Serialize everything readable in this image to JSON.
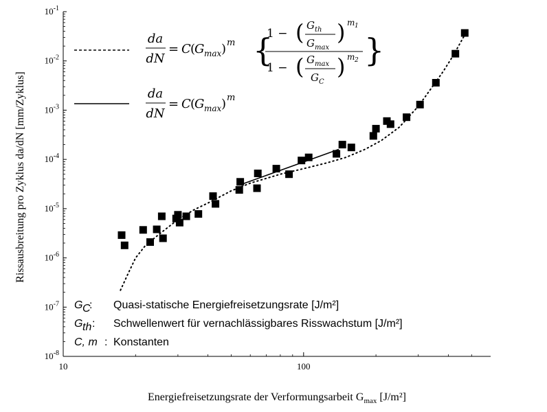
{
  "chart_data": {
    "type": "scatter",
    "title": "",
    "xlabel": "Energiefreisetzungsrate der Verformungsarbeit G",
    "xlabel_sub": "max",
    "xlabel_unit": " [J/m²]",
    "ylabel": "Rissausbreitung pro Zyklus da/dN [mm/Zyklus]",
    "x_scale": "log",
    "y_scale": "log",
    "xlim": [
      10,
      600
    ],
    "ylim": [
      1e-08,
      0.1
    ],
    "x_ticks": [
      {
        "value": 10,
        "label": "10"
      },
      {
        "value": 100,
        "label": "100"
      }
    ],
    "y_ticks": [
      {
        "value": 1e-08,
        "base": "10",
        "exp": "-8"
      },
      {
        "value": 1e-07,
        "base": "10",
        "exp": "-7"
      },
      {
        "value": 1e-06,
        "base": "10",
        "exp": "-6"
      },
      {
        "value": 1e-05,
        "base": "10",
        "exp": "-5"
      },
      {
        "value": 0.0001,
        "base": "10",
        "exp": "-4"
      },
      {
        "value": 0.001,
        "base": "10",
        "exp": "-3"
      },
      {
        "value": 0.01,
        "base": "10",
        "exp": "-2"
      },
      {
        "value": 0.1,
        "base": "10",
        "exp": "-1"
      }
    ],
    "grid": false,
    "legend_position": "top-left",
    "series": [
      {
        "kind": "markers",
        "color": "#000000",
        "points": [
          {
            "x": 17.5,
            "y": 2.9e-06
          },
          {
            "x": 18.0,
            "y": 1.8e-06
          },
          {
            "x": 21.5,
            "y": 3.7e-06
          },
          {
            "x": 23.0,
            "y": 2.1e-06
          },
          {
            "x": 24.5,
            "y": 3.8e-06
          },
          {
            "x": 25.7,
            "y": 7e-06
          },
          {
            "x": 26.0,
            "y": 2.5e-06
          },
          {
            "x": 29.5,
            "y": 6.3e-06
          },
          {
            "x": 30.0,
            "y": 7.5e-06
          },
          {
            "x": 30.5,
            "y": 5.2e-06
          },
          {
            "x": 32.5,
            "y": 7e-06
          },
          {
            "x": 36.5,
            "y": 7.8e-06
          },
          {
            "x": 42.0,
            "y": 1.8e-05
          },
          {
            "x": 43.0,
            "y": 1.25e-05
          },
          {
            "x": 54.0,
            "y": 2.4e-05
          },
          {
            "x": 54.5,
            "y": 3.5e-05
          },
          {
            "x": 64.0,
            "y": 2.6e-05
          },
          {
            "x": 64.5,
            "y": 5.2e-05
          },
          {
            "x": 77.0,
            "y": 6.5e-05
          },
          {
            "x": 87.0,
            "y": 5e-05
          },
          {
            "x": 98.0,
            "y": 9.5e-05
          },
          {
            "x": 105.0,
            "y": 0.00011
          },
          {
            "x": 137.0,
            "y": 0.00013
          },
          {
            "x": 145.0,
            "y": 0.0002
          },
          {
            "x": 158.0,
            "y": 0.000175
          },
          {
            "x": 195.0,
            "y": 0.0003
          },
          {
            "x": 200.0,
            "y": 0.00042
          },
          {
            "x": 222.0,
            "y": 0.0006
          },
          {
            "x": 230.0,
            "y": 0.00052
          },
          {
            "x": 268.0,
            "y": 0.00072
          },
          {
            "x": 305.0,
            "y": 0.0013
          },
          {
            "x": 355.0,
            "y": 0.0036
          },
          {
            "x": 428.0,
            "y": 0.014
          },
          {
            "x": 468.0,
            "y": 0.037
          }
        ]
      },
      {
        "kind": "dotted-line",
        "color": "#000000",
        "points": [
          {
            "x": 17.3,
            "y": 2.2e-07
          },
          {
            "x": 18.5,
            "y": 4.5e-07
          },
          {
            "x": 20.0,
            "y": 1e-06
          },
          {
            "x": 22.0,
            "y": 1.8e-06
          },
          {
            "x": 25.0,
            "y": 3e-06
          },
          {
            "x": 30.0,
            "y": 6e-06
          },
          {
            "x": 35.0,
            "y": 9.5e-06
          },
          {
            "x": 40.0,
            "y": 1.3e-05
          },
          {
            "x": 50.0,
            "y": 2.3e-05
          },
          {
            "x": 60.0,
            "y": 3.3e-05
          },
          {
            "x": 80.0,
            "y": 5e-05
          },
          {
            "x": 100.0,
            "y": 6.5e-05
          },
          {
            "x": 125.0,
            "y": 8.5e-05
          },
          {
            "x": 150.0,
            "y": 0.00011
          },
          {
            "x": 180.0,
            "y": 0.00016
          },
          {
            "x": 210.0,
            "y": 0.00024
          },
          {
            "x": 250.0,
            "y": 0.00045
          },
          {
            "x": 300.0,
            "y": 0.0012
          },
          {
            "x": 340.0,
            "y": 0.0028
          },
          {
            "x": 380.0,
            "y": 0.006
          },
          {
            "x": 420.0,
            "y": 0.013
          },
          {
            "x": 470.0,
            "y": 0.035
          }
        ]
      },
      {
        "kind": "solid-line",
        "color": "#000000",
        "points": [
          {
            "x": 54.0,
            "y": 3e-05
          },
          {
            "x": 140.0,
            "y": 0.00016
          }
        ]
      }
    ],
    "legend": [
      {
        "style": "dashed",
        "equation": "nasgro"
      },
      {
        "style": "solid",
        "equation": "paris"
      }
    ],
    "equations": {
      "lhs_num": "da",
      "lhs_den": "dN",
      "eq_sign": "=",
      "C": "C",
      "Gmax_G": "G",
      "Gmax_sub": "max",
      "m": "m",
      "one_minus": "1 −",
      "Gth_G": "G",
      "Gth_sub": "th",
      "GC_G": "G",
      "GC_sub": "C",
      "m1_m": "m",
      "m1_sub": "1",
      "m2_m": "m",
      "m2_sub": "2"
    },
    "notes": [
      {
        "sym": "G",
        "sub": "C",
        "text": "Quasi-statische Energiefreisetzungsrate [J/m²]"
      },
      {
        "sym": "G",
        "sub": "th",
        "text": "Schwellenwert für vernachlässigbares Risswachstum [J/m²]"
      },
      {
        "sym": "C, m",
        "sub": "",
        "text": "Konstanten"
      }
    ]
  }
}
